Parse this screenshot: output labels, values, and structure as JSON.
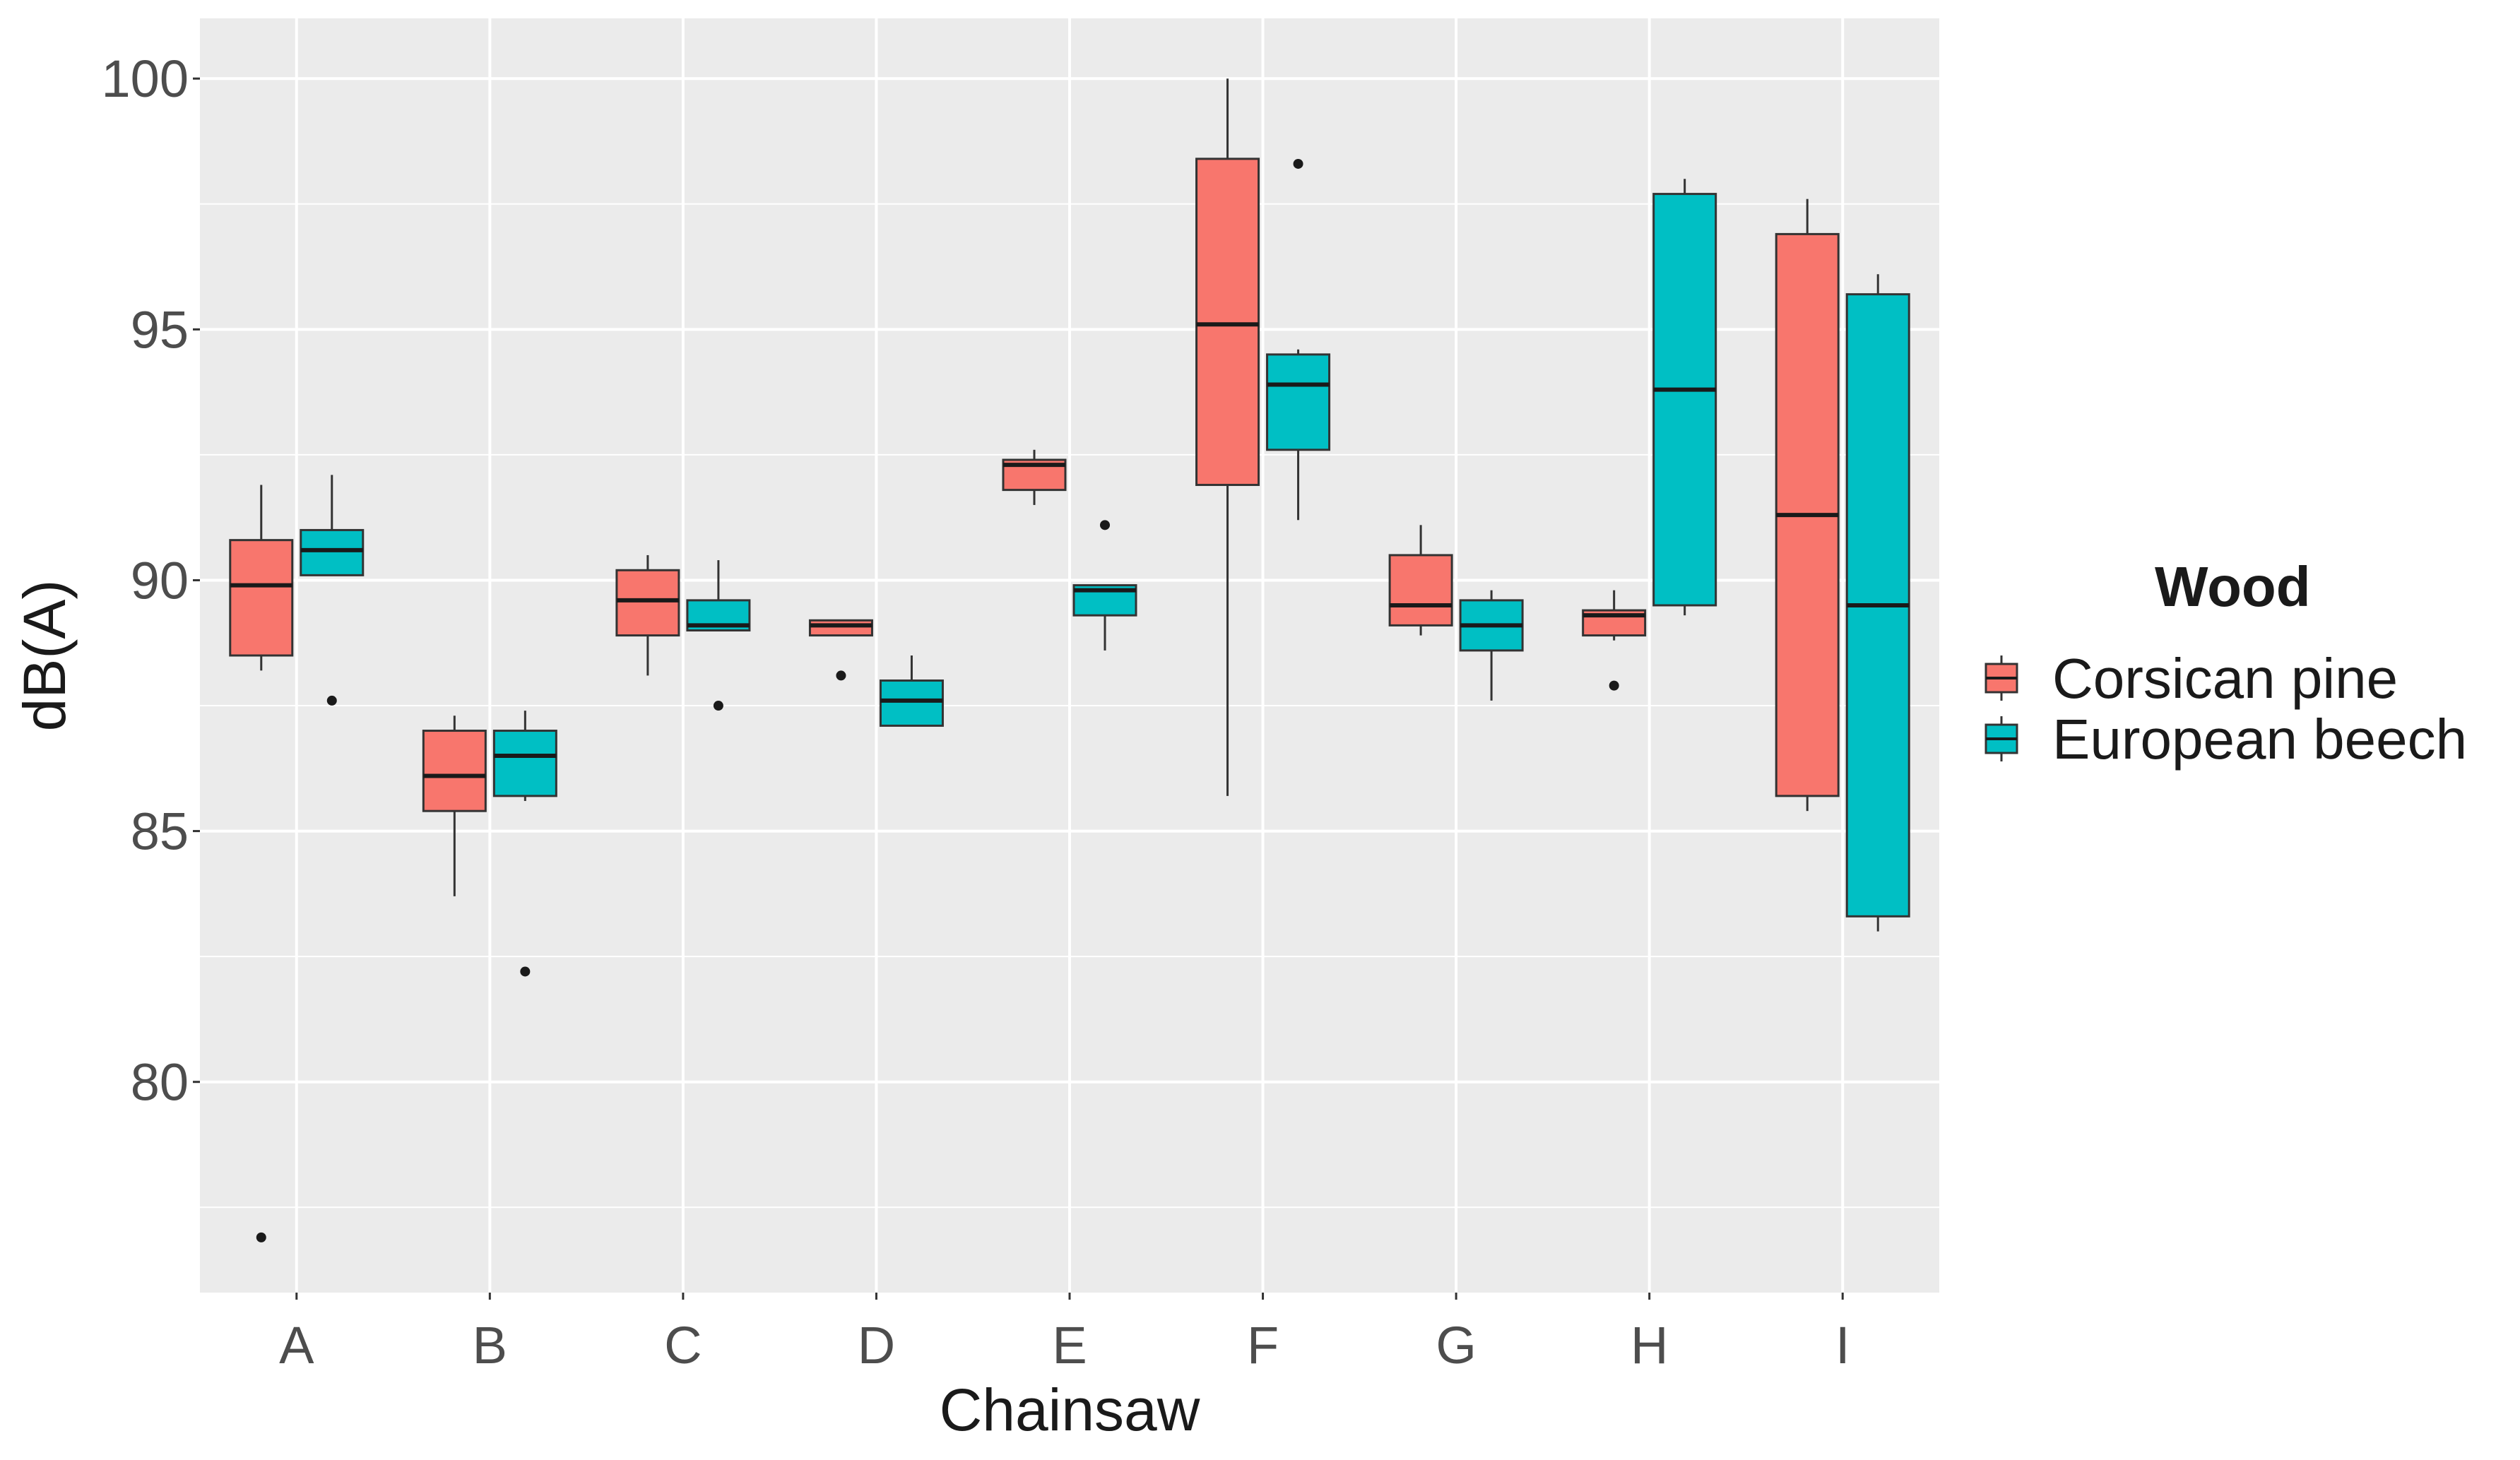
{
  "chart_data": {
    "type": "boxplot",
    "title": "",
    "xlabel": "Chainsaw",
    "ylabel": "dB(A)",
    "categories": [
      "A",
      "B",
      "C",
      "D",
      "E",
      "F",
      "G",
      "H",
      "I"
    ],
    "ylim": [
      75.8,
      101.2
    ],
    "yticks": [
      80,
      85,
      90,
      95,
      100
    ],
    "ytick_labels": [
      "80",
      "85",
      "90",
      "95",
      "100"
    ],
    "grid": true,
    "legend": {
      "title": "Wood",
      "position": "right"
    },
    "series": [
      {
        "name": "Corsican pine",
        "color": "#F8766D",
        "boxes": [
          {
            "category": "A",
            "whisker_low": 88.2,
            "q1": 88.5,
            "median": 89.9,
            "q3": 90.8,
            "whisker_high": 91.9,
            "outliers": [
              76.9
            ]
          },
          {
            "category": "B",
            "whisker_low": 83.7,
            "q1": 85.4,
            "median": 86.1,
            "q3": 87.0,
            "whisker_high": 87.3,
            "outliers": []
          },
          {
            "category": "C",
            "whisker_low": 88.1,
            "q1": 88.9,
            "median": 89.6,
            "q3": 90.2,
            "whisker_high": 90.5,
            "outliers": []
          },
          {
            "category": "D",
            "whisker_low": 88.9,
            "q1": 88.9,
            "median": 89.1,
            "q3": 89.2,
            "whisker_high": 89.2,
            "outliers": [
              88.1
            ]
          },
          {
            "category": "E",
            "whisker_low": 91.5,
            "q1": 91.8,
            "median": 92.3,
            "q3": 92.4,
            "whisker_high": 92.6,
            "outliers": []
          },
          {
            "category": "F",
            "whisker_low": 85.7,
            "q1": 91.9,
            "median": 95.1,
            "q3": 98.4,
            "whisker_high": 100.0,
            "outliers": []
          },
          {
            "category": "G",
            "whisker_low": 88.9,
            "q1": 89.1,
            "median": 89.5,
            "q3": 90.5,
            "whisker_high": 91.1,
            "outliers": []
          },
          {
            "category": "H",
            "whisker_low": 88.8,
            "q1": 88.9,
            "median": 89.3,
            "q3": 89.4,
            "whisker_high": 89.8,
            "outliers": [
              87.9
            ]
          },
          {
            "category": "I",
            "whisker_low": 85.4,
            "q1": 85.7,
            "median": 91.3,
            "q3": 96.9,
            "whisker_high": 97.6,
            "outliers": []
          }
        ]
      },
      {
        "name": "European beech",
        "color": "#00BFC4",
        "boxes": [
          {
            "category": "A",
            "whisker_low": 90.1,
            "q1": 90.1,
            "median": 90.6,
            "q3": 91.0,
            "whisker_high": 92.1,
            "outliers": [
              87.6
            ]
          },
          {
            "category": "B",
            "whisker_low": 85.6,
            "q1": 85.7,
            "median": 86.5,
            "q3": 87.0,
            "whisker_high": 87.4,
            "outliers": [
              82.2
            ]
          },
          {
            "category": "C",
            "whisker_low": 89.0,
            "q1": 89.0,
            "median": 89.1,
            "q3": 89.6,
            "whisker_high": 90.4,
            "outliers": [
              87.5
            ]
          },
          {
            "category": "D",
            "whisker_low": 87.1,
            "q1": 87.1,
            "median": 87.6,
            "q3": 88.0,
            "whisker_high": 88.5,
            "outliers": []
          },
          {
            "category": "E",
            "whisker_low": 88.6,
            "q1": 89.3,
            "median": 89.8,
            "q3": 89.9,
            "whisker_high": 89.9,
            "outliers": [
              91.1
            ]
          },
          {
            "category": "F",
            "whisker_low": 91.2,
            "q1": 92.6,
            "median": 93.9,
            "q3": 94.5,
            "whisker_high": 94.6,
            "outliers": [
              98.3
            ]
          },
          {
            "category": "G",
            "whisker_low": 87.6,
            "q1": 88.6,
            "median": 89.1,
            "q3": 89.6,
            "whisker_high": 89.8,
            "outliers": []
          },
          {
            "category": "H",
            "whisker_low": 89.3,
            "q1": 89.5,
            "median": 93.8,
            "q3": 97.7,
            "whisker_high": 98.0,
            "outliers": []
          },
          {
            "category": "I",
            "whisker_low": 83.0,
            "q1": 83.3,
            "median": 89.5,
            "q3": 95.7,
            "whisker_high": 96.1,
            "outliers": []
          }
        ]
      }
    ]
  }
}
